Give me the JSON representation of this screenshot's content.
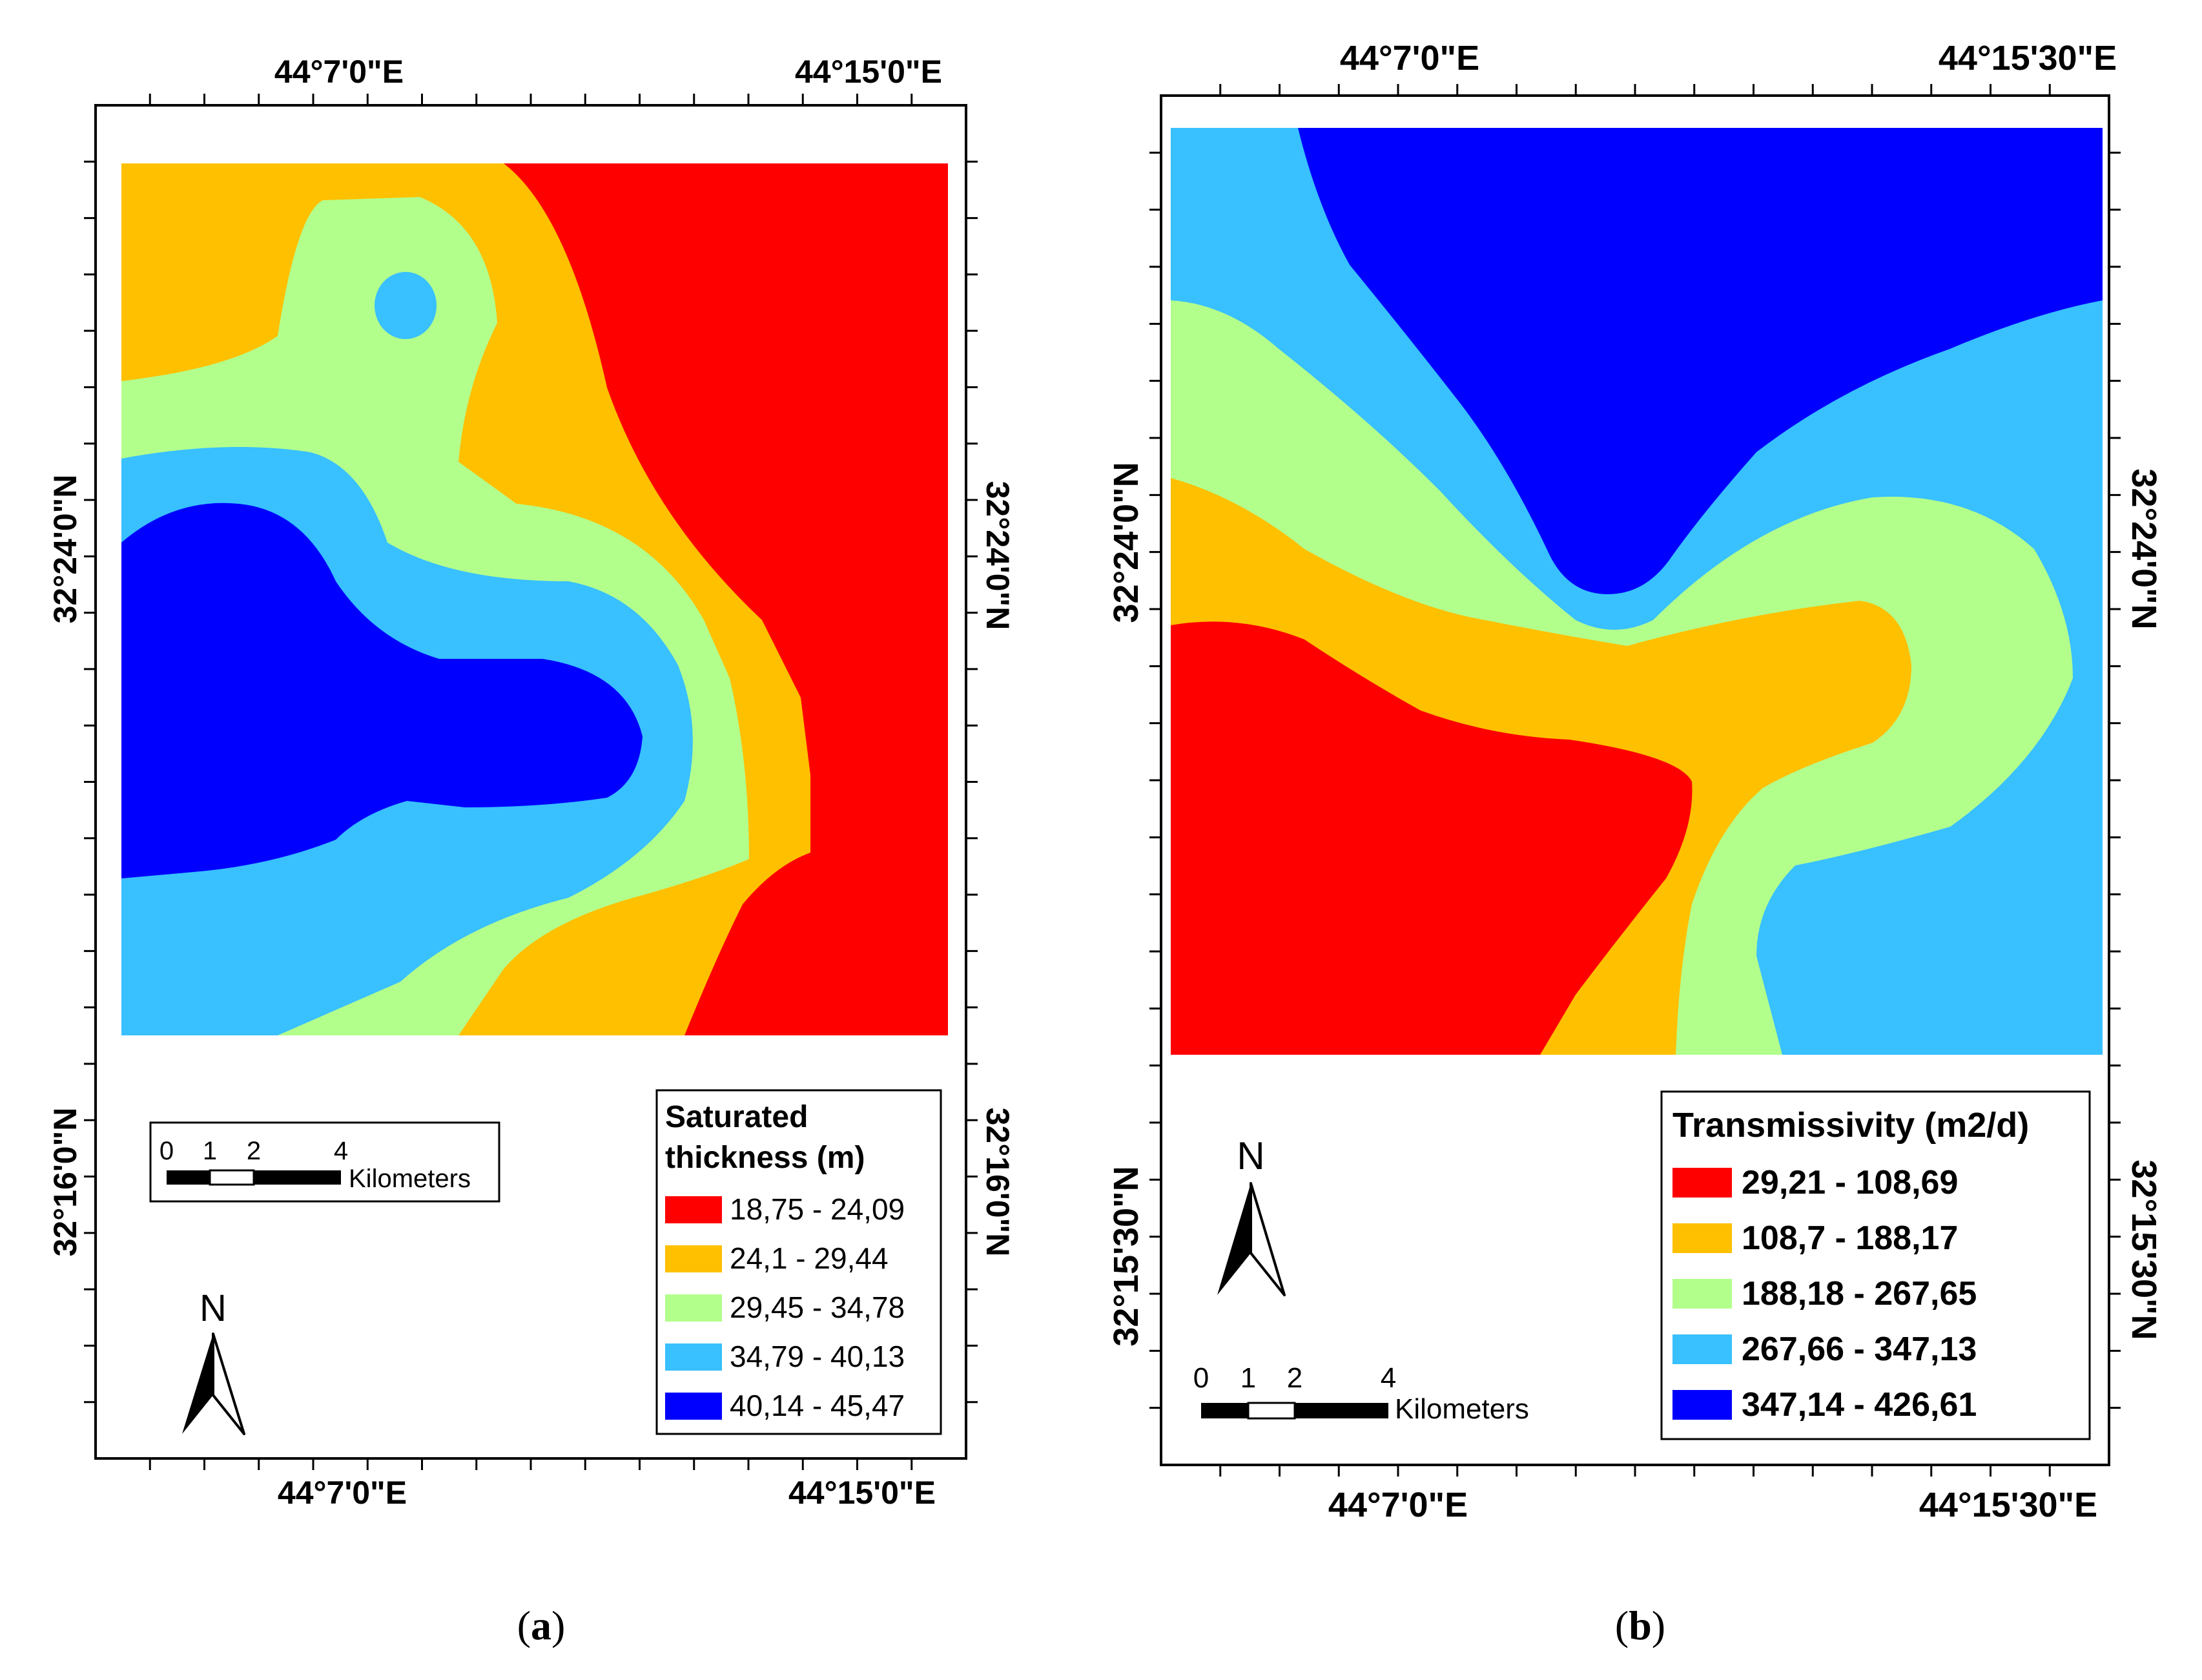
{
  "colors": {
    "class1": "#ff0000",
    "class2": "#ffc000",
    "class3": "#b3ff8c",
    "class4": "#38c0ff",
    "class5": "#0000ff",
    "frame": "#000000"
  },
  "map_a": {
    "caption_open": "(",
    "caption_letter": "a",
    "caption_close": ")",
    "top_lon_left": "44°7'0\"E",
    "top_lon_right": "44°15'0\"E",
    "bottom_lon_left": "44°7'0\"E",
    "bottom_lon_right": "44°15'0\"E",
    "left_lat_upper": "32°24'0\"N",
    "left_lat_lower": "32°16'0\"N",
    "right_lat_upper": "32°24'0\"N",
    "right_lat_lower": "32°16'0\"N",
    "legend": {
      "title_line1": "Saturated",
      "title_line2": "thickness (m)",
      "classes": [
        "18,75 - 24,09",
        "24,1 - 29,44",
        "29,45 - 34,78",
        "34,79 - 40,13",
        "40,14 - 45,47"
      ]
    },
    "scale_bar": {
      "ticks": [
        "0",
        "1",
        "2",
        "4"
      ],
      "unit": "Kilometers"
    },
    "north_label": "N"
  },
  "map_b": {
    "caption_open": "(",
    "caption_letter": "b",
    "caption_close": ")",
    "top_lon_left": "44°7'0\"E",
    "top_lon_right": "44°15'30\"E",
    "bottom_lon_left": "44°7'0\"E",
    "bottom_lon_right": "44°15'30\"E",
    "left_lat_upper": "32°24'0\"N",
    "left_lat_lower": "32°15'30\"N",
    "right_lat_upper": "32°24'0\"N",
    "right_lat_lower": "32°15'30\"N",
    "legend": {
      "title": "Transmissivity (m2/d)",
      "classes": [
        "29,21 - 108,69",
        "108,7 - 188,17",
        "188,18 - 267,65",
        "267,66 - 347,13",
        "347,14 - 426,61"
      ]
    },
    "scale_bar": {
      "ticks": [
        "0",
        "1",
        "2",
        "4"
      ],
      "unit": "Kilometers"
    },
    "north_label": "N"
  }
}
